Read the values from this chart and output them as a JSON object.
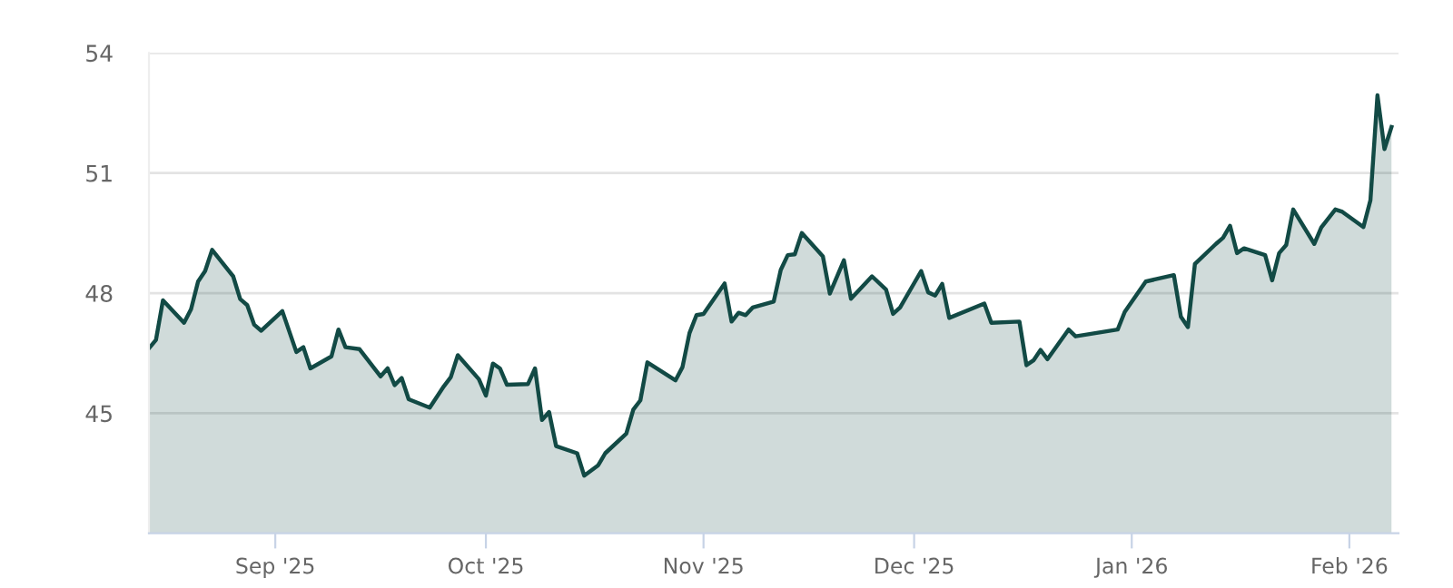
{
  "chart_data": {
    "type": "area",
    "x": [
      "2025-08-14",
      "2025-08-15",
      "2025-08-16",
      "2025-08-19",
      "2025-08-20",
      "2025-08-21",
      "2025-08-22",
      "2025-08-23",
      "2025-08-26",
      "2025-08-27",
      "2025-08-28",
      "2025-08-29",
      "2025-08-30",
      "2025-09-02",
      "2025-09-04",
      "2025-09-05",
      "2025-09-06",
      "2025-09-09",
      "2025-09-10",
      "2025-09-11",
      "2025-09-13",
      "2025-09-16",
      "2025-09-17",
      "2025-09-18",
      "2025-09-19",
      "2025-09-20",
      "2025-09-23",
      "2025-09-25",
      "2025-09-26",
      "2025-09-27",
      "2025-09-30",
      "2025-10-01",
      "2025-10-02",
      "2025-10-03",
      "2025-10-04",
      "2025-10-07",
      "2025-10-08",
      "2025-10-09",
      "2025-10-10",
      "2025-10-11",
      "2025-10-14",
      "2025-10-15",
      "2025-10-17",
      "2025-10-18",
      "2025-10-21",
      "2025-10-22",
      "2025-10-23",
      "2025-10-24",
      "2025-10-28",
      "2025-10-29",
      "2025-10-30",
      "2025-10-31",
      "2025-11-01",
      "2025-11-04",
      "2025-11-05",
      "2025-11-06",
      "2025-11-07",
      "2025-11-08",
      "2025-11-11",
      "2025-11-12",
      "2025-11-13",
      "2025-11-14",
      "2025-11-15",
      "2025-11-18",
      "2025-11-19",
      "2025-11-21",
      "2025-11-22",
      "2025-11-25",
      "2025-11-27",
      "2025-11-28",
      "2025-11-29",
      "2025-12-02",
      "2025-12-03",
      "2025-12-04",
      "2025-12-05",
      "2025-12-06",
      "2025-12-11",
      "2025-12-12",
      "2025-12-16",
      "2025-12-17",
      "2025-12-18",
      "2025-12-19",
      "2025-12-20",
      "2025-12-23",
      "2025-12-24",
      "2025-12-30",
      "2025-12-31",
      "2026-01-03",
      "2026-01-07",
      "2026-01-08",
      "2026-01-09",
      "2026-01-10",
      "2026-01-13",
      "2026-01-14",
      "2026-01-15",
      "2026-01-16",
      "2026-01-17",
      "2026-01-20",
      "2026-01-21",
      "2026-01-22",
      "2026-01-23",
      "2026-01-24",
      "2026-01-27",
      "2026-01-28",
      "2026-01-30",
      "2026-01-31",
      "2026-02-03",
      "2026-02-04",
      "2026-02-05",
      "2026-02-06",
      "2026-02-07"
    ],
    "series": [
      {
        "color": "#124a45",
        "values": [
          46.62,
          46.83,
          47.82,
          47.26,
          47.6,
          48.29,
          48.55,
          49.08,
          48.42,
          47.85,
          47.7,
          47.21,
          47.06,
          47.55,
          46.53,
          46.65,
          46.12,
          46.42,
          47.09,
          46.65,
          46.6,
          45.92,
          46.12,
          45.7,
          45.88,
          45.35,
          45.14,
          45.67,
          45.9,
          46.45,
          45.85,
          45.44,
          46.24,
          46.12,
          45.71,
          45.73,
          46.12,
          44.83,
          45.03,
          44.18,
          44.0,
          43.44,
          43.7,
          44.0,
          44.49,
          45.09,
          45.32,
          46.27,
          45.82,
          46.15,
          47.0,
          47.45,
          47.48,
          48.24,
          47.29,
          47.51,
          47.45,
          47.64,
          47.79,
          48.58,
          48.95,
          48.97,
          49.5,
          48.92,
          47.99,
          48.82,
          47.86,
          48.42,
          48.09,
          47.48,
          47.64,
          48.55,
          48.02,
          47.94,
          48.23,
          47.38,
          47.74,
          47.26,
          47.29,
          46.2,
          46.32,
          46.58,
          46.35,
          47.09,
          46.92,
          47.09,
          47.53,
          48.29,
          48.45,
          47.41,
          47.15,
          48.73,
          49.23,
          49.38,
          49.68,
          49.0,
          49.12,
          48.95,
          48.32,
          49.0,
          49.2,
          50.09,
          49.23,
          49.64,
          50.09,
          50.03,
          49.65,
          50.32,
          52.94,
          51.6,
          52.15
        ]
      }
    ],
    "xlim": [
      "2025-08-14",
      "2026-02-08"
    ],
    "xticks": [
      {
        "value": "2025-09-01",
        "label": "Sep '25"
      },
      {
        "value": "2025-10-01",
        "label": "Oct '25"
      },
      {
        "value": "2025-11-01",
        "label": "Nov '25"
      },
      {
        "value": "2025-12-01",
        "label": "Dec '25"
      },
      {
        "value": "2026-01-01",
        "label": "Jan '26"
      },
      {
        "value": "2026-02-01",
        "label": "Feb '26"
      }
    ],
    "ylim": [
      42,
      54
    ],
    "yticks": [
      45,
      48,
      51,
      54
    ],
    "grid": "y",
    "line_style": "solid",
    "marker": "none"
  }
}
